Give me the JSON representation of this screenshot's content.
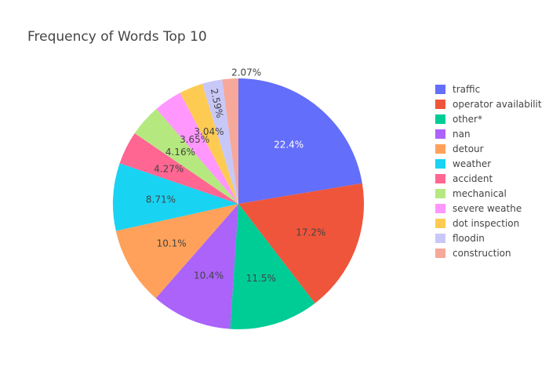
{
  "chart_data": {
    "type": "pie",
    "title": "Frequency of Words Top 10",
    "legend_position": "right",
    "slices": [
      {
        "label": "traffic",
        "value": 22.4,
        "text": "22.4%",
        "color": "#636efa"
      },
      {
        "label": "operator availabilit",
        "value": 17.2,
        "text": "17.2%",
        "color": "#ef553b"
      },
      {
        "label": "other*",
        "value": 11.5,
        "text": "11.5%",
        "color": "#00cc96"
      },
      {
        "label": "nan",
        "value": 10.4,
        "text": "10.4%",
        "color": "#ab63fa"
      },
      {
        "label": "detour",
        "value": 10.1,
        "text": "10.1%",
        "color": "#ffa15a"
      },
      {
        "label": "weather",
        "value": 8.71,
        "text": "8.71%",
        "color": "#19d3f3"
      },
      {
        "label": "accident",
        "value": 4.27,
        "text": "4.27%",
        "color": "#ff6692"
      },
      {
        "label": "mechanical",
        "value": 4.16,
        "text": "4.16%",
        "color": "#b6e880"
      },
      {
        "label": "severe weathe",
        "value": 3.65,
        "text": "3.65%",
        "color": "#ff97ff"
      },
      {
        "label": "dot inspection",
        "value": 3.04,
        "text": "3.04%",
        "color": "#fecb52"
      },
      {
        "label": "floodin",
        "value": 2.59,
        "text": "2.59%",
        "color": "#c8c8f8"
      },
      {
        "label": "construction",
        "value": 2.07,
        "text": "2.07%",
        "color": "#f6a89a"
      }
    ]
  }
}
